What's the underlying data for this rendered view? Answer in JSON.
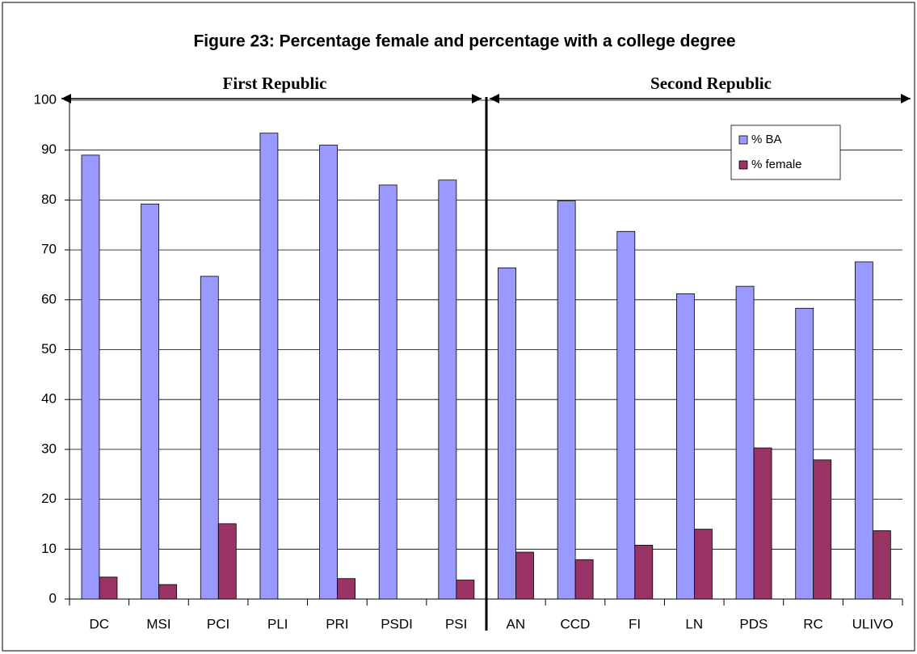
{
  "chart_data": {
    "type": "bar",
    "title": "Figure 23: Percentage female and percentage with a college degree",
    "annotations": [
      "First Republic",
      "Second Republic"
    ],
    "categories": [
      "DC",
      "MSI",
      "PCI",
      "PLI",
      "PRI",
      "PSDI",
      "PSI",
      "AN",
      "CCD",
      "FI",
      "LN",
      "PDS",
      "RC",
      "ULIVO"
    ],
    "series": [
      {
        "name": "% BA",
        "color": "#9999ff",
        "values": [
          89,
          79.2,
          64.7,
          93.4,
          91,
          83,
          84,
          66.4,
          79.8,
          73.7,
          61.2,
          62.7,
          58.3,
          67.6
        ]
      },
      {
        "name": "% female",
        "color": "#993366",
        "values": [
          4.4,
          2.9,
          15.1,
          0,
          4.1,
          0,
          3.8,
          9.4,
          7.9,
          10.8,
          14,
          30.3,
          27.9,
          13.7
        ]
      }
    ],
    "ylim": [
      0,
      100
    ],
    "yticks": [
      0,
      10,
      20,
      30,
      40,
      50,
      60,
      70,
      80,
      90,
      100
    ],
    "grid": true,
    "legend": "upper right"
  }
}
